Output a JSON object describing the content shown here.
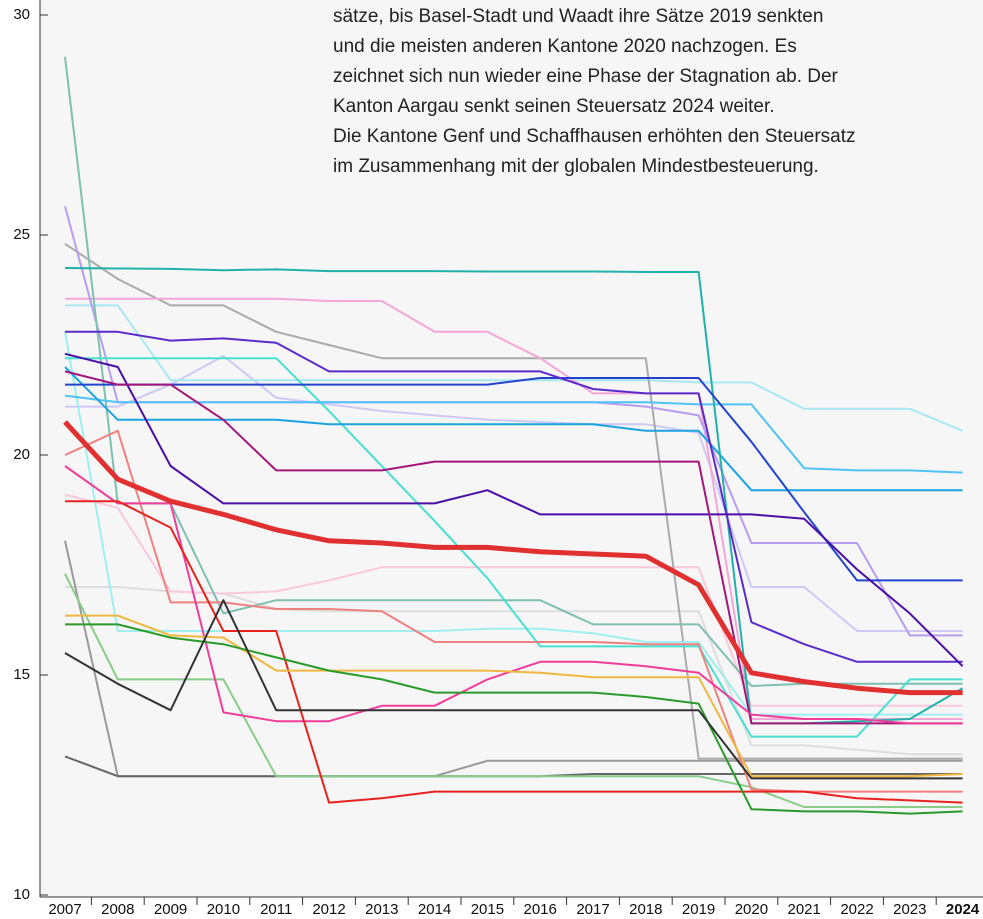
{
  "chart_data": {
    "type": "line",
    "annotation": [
      "sätze, bis Basel-Stadt und Waadt ihre Sätze 2019 senkten",
      "und die meisten anderen Kantone 2020 nachzogen. Es",
      "zeichnet sich nun wieder eine Phase der Stagnation ab. Der",
      "Kanton Aargau senkt seinen Steuersatz 2024 weiter.",
      "Die Kantone Genf und Schaffhausen erhöhten den Steuersatz",
      "im Zusammenhang mit der globalen Mindestbesteuerung."
    ],
    "categories": [
      "2007",
      "2008",
      "2009",
      "2010",
      "2011",
      "2012",
      "2013",
      "2014",
      "2015",
      "2016",
      "2017",
      "2018",
      "2019",
      "2020",
      "2021",
      "2022",
      "2023",
      "2024"
    ],
    "ylim": [
      10,
      30
    ],
    "yticks": [
      10,
      15,
      20,
      25,
      30
    ],
    "series": [
      {
        "color": "#dddddd",
        "width": 2,
        "values": [
          17.0,
          17.0,
          16.9,
          16.85,
          16.5,
          16.45,
          16.45,
          16.45,
          16.45,
          16.45,
          16.45,
          16.45,
          16.45,
          13.4,
          13.4,
          13.3,
          13.2,
          13.2
        ]
      },
      {
        "color": "#f9c8dc",
        "width": 2,
        "values": [
          19.1,
          18.8,
          16.9,
          16.85,
          16.9,
          17.15,
          17.45,
          17.45,
          17.45,
          17.45,
          17.45,
          17.45,
          17.45,
          14.3,
          14.3,
          14.3,
          14.3,
          14.3
        ]
      },
      {
        "color": "#cfc8f5",
        "width": 2,
        "values": [
          21.1,
          21.1,
          21.6,
          22.25,
          21.3,
          21.15,
          21.0,
          20.9,
          20.8,
          20.75,
          20.7,
          20.7,
          20.5,
          17.0,
          17.0,
          16.0,
          16.0,
          16.0
        ]
      },
      {
        "color": "#a8e8f2",
        "width": 2,
        "values": [
          23.4,
          23.4,
          21.7,
          21.7,
          21.7,
          21.7,
          21.7,
          21.7,
          21.7,
          21.7,
          21.7,
          21.7,
          21.65,
          21.65,
          21.05,
          21.05,
          21.05,
          20.55
        ]
      },
      {
        "color": "#999999",
        "width": 2,
        "values": [
          18.05,
          12.7,
          12.7,
          12.7,
          12.7,
          12.7,
          12.7,
          12.7,
          13.05,
          13.05,
          13.05,
          13.05,
          13.05,
          13.05,
          13.05,
          13.05,
          13.05,
          13.05
        ]
      },
      {
        "color": "#aaaaaa",
        "width": 2,
        "values": [
          24.8,
          24.0,
          23.4,
          23.4,
          22.8,
          22.5,
          22.2,
          22.2,
          22.2,
          22.2,
          22.2,
          22.2,
          13.1,
          13.1,
          13.1,
          13.1,
          13.1,
          13.1
        ]
      },
      {
        "color": "#666666",
        "width": 2,
        "values": [
          13.15,
          12.7,
          12.7,
          12.7,
          12.7,
          12.7,
          12.7,
          12.7,
          12.7,
          12.7,
          12.75,
          12.75,
          12.75,
          12.75,
          12.75,
          12.75,
          12.75,
          12.75
        ]
      },
      {
        "color": "#88cc88",
        "width": 2,
        "values": [
          17.3,
          14.9,
          14.9,
          14.9,
          12.7,
          12.7,
          12.7,
          12.7,
          12.7,
          12.7,
          12.7,
          12.7,
          12.7,
          12.45,
          12.0,
          12.0,
          12.0,
          12.0
        ]
      },
      {
        "color": "#f4a6d7",
        "width": 2,
        "values": [
          23.55,
          23.55,
          23.55,
          23.55,
          23.55,
          23.5,
          23.5,
          22.8,
          22.8,
          22.2,
          21.4,
          21.4,
          21.4,
          14.0,
          14.0,
          14.0,
          14.0,
          14.0
        ]
      },
      {
        "color": "#b89cf0",
        "width": 2,
        "values": [
          25.65,
          21.2,
          21.2,
          21.2,
          21.2,
          21.2,
          21.2,
          21.2,
          21.2,
          21.2,
          21.2,
          21.1,
          20.9,
          18.0,
          18.0,
          18.0,
          15.9,
          15.9
        ]
      },
      {
        "color": "#7fbfb0",
        "width": 2,
        "values": [
          29.05,
          18.9,
          18.9,
          16.4,
          16.7,
          16.7,
          16.7,
          16.7,
          16.7,
          16.7,
          16.15,
          16.15,
          16.15,
          14.75,
          14.8,
          14.8,
          14.8,
          14.8
        ]
      },
      {
        "color": "#9ef0ee",
        "width": 2,
        "values": [
          22.8,
          16.0,
          16.0,
          16.0,
          16.0,
          16.0,
          16.0,
          16.0,
          16.05,
          16.05,
          15.95,
          15.75,
          15.75,
          14.1,
          14.1,
          14.1,
          14.1,
          14.1
        ]
      },
      {
        "color": "#48e0d0",
        "width": 2,
        "values": [
          22.2,
          22.2,
          22.2,
          22.2,
          22.2,
          21.0,
          19.75,
          18.5,
          17.2,
          15.65,
          15.65,
          15.65,
          15.65,
          13.6,
          13.6,
          13.6,
          14.9,
          14.9
        ]
      },
      {
        "color": "#4fc3f7",
        "width": 2,
        "values": [
          21.35,
          21.2,
          21.2,
          21.2,
          21.2,
          21.2,
          21.2,
          21.2,
          21.2,
          21.2,
          21.2,
          21.2,
          21.15,
          21.15,
          19.7,
          19.65,
          19.65,
          19.6
        ]
      },
      {
        "color": "#1aa3e0",
        "width": 2,
        "values": [
          22.0,
          20.8,
          20.8,
          20.8,
          20.8,
          20.7,
          20.7,
          20.7,
          20.7,
          20.7,
          20.7,
          20.55,
          20.55,
          19.2,
          19.2,
          19.2,
          19.2,
          19.2
        ]
      },
      {
        "color": "#20b2aa",
        "width": 2,
        "values": [
          24.25,
          24.24,
          24.23,
          24.2,
          24.22,
          24.18,
          24.18,
          24.18,
          24.17,
          24.17,
          24.17,
          24.16,
          24.16,
          13.9,
          13.9,
          13.95,
          14.0,
          14.7
        ]
      },
      {
        "color": "#2244cc",
        "width": 2,
        "values": [
          21.6,
          21.6,
          21.6,
          21.6,
          21.6,
          21.6,
          21.6,
          21.6,
          21.6,
          21.75,
          21.75,
          21.75,
          21.75,
          20.3,
          18.7,
          17.15,
          17.15,
          17.15
        ]
      },
      {
        "color": "#5b2bc9",
        "width": 2,
        "values": [
          22.8,
          22.8,
          22.6,
          22.65,
          22.55,
          21.9,
          21.9,
          21.9,
          21.9,
          21.9,
          21.5,
          21.4,
          21.4,
          16.2,
          15.7,
          15.3,
          15.3,
          15.3
        ]
      },
      {
        "color": "#4b0fa8",
        "width": 2,
        "values": [
          22.3,
          22.0,
          19.75,
          18.9,
          18.9,
          18.9,
          18.9,
          18.9,
          19.2,
          18.65,
          18.65,
          18.65,
          18.65,
          18.65,
          18.55,
          17.4,
          16.4,
          15.2
        ]
      },
      {
        "color": "#a3167a",
        "width": 2,
        "values": [
          21.9,
          21.6,
          21.6,
          20.8,
          19.65,
          19.65,
          19.65,
          19.85,
          19.85,
          19.85,
          19.85,
          19.85,
          19.85,
          13.9,
          13.9,
          13.9,
          13.9,
          13.9
        ]
      },
      {
        "color": "#f08080",
        "width": 2,
        "values": [
          20.0,
          20.55,
          16.65,
          16.65,
          16.5,
          16.5,
          16.45,
          15.75,
          15.75,
          15.75,
          15.75,
          15.7,
          15.7,
          12.4,
          12.35,
          12.35,
          12.35,
          12.35
        ]
      },
      {
        "color": "#f03c9a",
        "width": 2,
        "values": [
          19.75,
          18.9,
          18.9,
          14.15,
          13.95,
          13.95,
          14.3,
          14.3,
          14.9,
          15.3,
          15.3,
          15.2,
          15.05,
          14.1,
          14.0,
          14.0,
          13.9,
          13.9
        ]
      },
      {
        "color": "#e8231f",
        "width": 2,
        "values": [
          18.95,
          18.95,
          18.35,
          16.0,
          16.0,
          12.1,
          12.2,
          12.35,
          12.35,
          12.35,
          12.35,
          12.35,
          12.35,
          12.35,
          12.35,
          12.2,
          12.15,
          12.1
        ]
      },
      {
        "color": "#f0b840",
        "width": 2,
        "values": [
          16.35,
          16.35,
          15.9,
          15.85,
          15.1,
          15.1,
          15.1,
          15.1,
          15.1,
          15.05,
          14.95,
          14.95,
          14.95,
          12.7,
          12.7,
          12.7,
          12.7,
          12.75
        ]
      },
      {
        "color": "#2a9a2a",
        "width": 2,
        "values": [
          16.15,
          16.15,
          15.85,
          15.7,
          15.4,
          15.1,
          14.9,
          14.6,
          14.6,
          14.6,
          14.6,
          14.5,
          14.35,
          11.95,
          11.9,
          11.9,
          11.85,
          11.9
        ]
      },
      {
        "color": "#333333",
        "width": 2,
        "values": [
          15.5,
          14.8,
          14.2,
          16.7,
          14.2,
          14.2,
          14.2,
          14.2,
          14.2,
          14.2,
          14.2,
          14.2,
          14.2,
          12.65,
          12.65,
          12.65,
          12.65,
          12.65
        ]
      },
      {
        "color": "#e03030",
        "width": 5,
        "values": [
          20.75,
          19.45,
          18.95,
          18.65,
          18.3,
          18.05,
          18.0,
          17.9,
          17.9,
          17.8,
          17.75,
          17.7,
          17.05,
          15.05,
          14.85,
          14.7,
          14.6,
          14.6
        ]
      }
    ]
  }
}
